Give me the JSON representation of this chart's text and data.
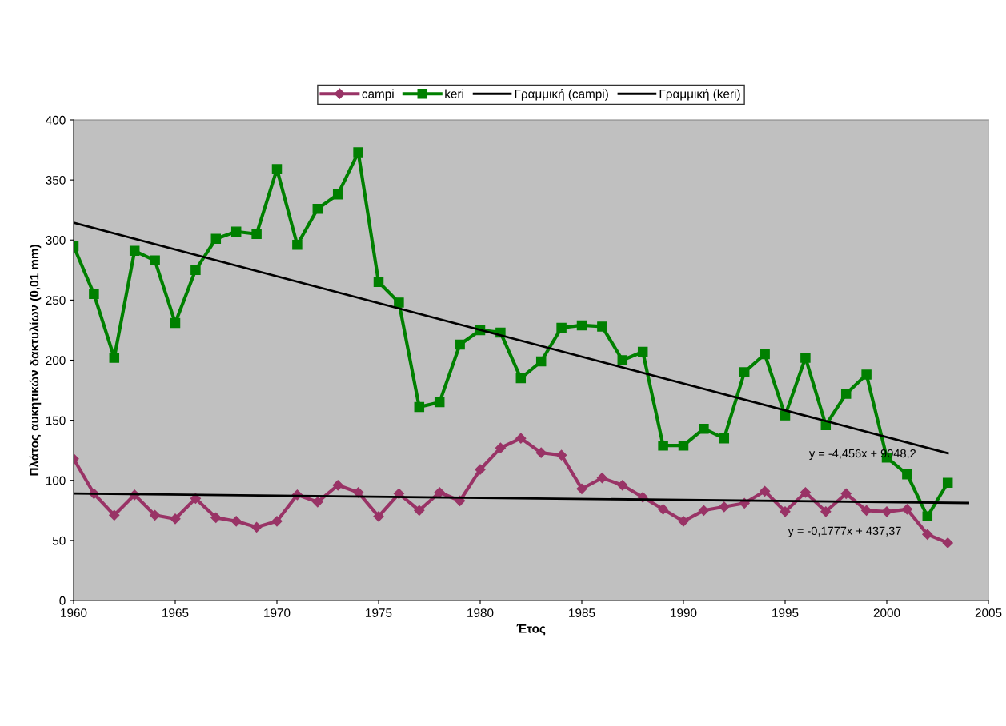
{
  "chart_data": {
    "type": "line",
    "xlabel": "Έτος",
    "ylabel": "Πλάτος αυκητικών δακτυλίων (0,01 mm)",
    "x": [
      1960,
      1961,
      1962,
      1963,
      1964,
      1965,
      1966,
      1967,
      1968,
      1969,
      1970,
      1971,
      1972,
      1973,
      1974,
      1975,
      1976,
      1977,
      1978,
      1979,
      1980,
      1981,
      1982,
      1983,
      1984,
      1985,
      1986,
      1987,
      1988,
      1989,
      1990,
      1991,
      1992,
      1993,
      1994,
      1995,
      1996,
      1997,
      1998,
      1999,
      2000,
      2001,
      2002,
      2003
    ],
    "series": [
      {
        "name": "campi",
        "color": "#993366",
        "marker": "diamond",
        "values": [
          118,
          89,
          71,
          88,
          71,
          68,
          85,
          69,
          66,
          61,
          66,
          88,
          82,
          96,
          90,
          70,
          89,
          75,
          90,
          83,
          109,
          127,
          135,
          123,
          121,
          93,
          102,
          96,
          86,
          76,
          66,
          75,
          78,
          81,
          91,
          74,
          90,
          74,
          89,
          75,
          74,
          76,
          55,
          48
        ]
      },
      {
        "name": "keri",
        "color": "#008000",
        "marker": "square",
        "values": [
          295,
          255,
          202,
          291,
          283,
          231,
          275,
          301,
          307,
          305,
          359,
          296,
          326,
          338,
          373,
          265,
          248,
          161,
          165,
          213,
          225,
          223,
          185,
          199,
          227,
          229,
          228,
          200,
          207,
          129,
          129,
          143,
          135,
          190,
          205,
          154,
          202,
          146,
          172,
          188,
          119,
          105,
          70,
          98
        ]
      },
      {
        "name": "Γραμμική (campi)",
        "color": "#000000",
        "marker": "none",
        "x": [
          1960,
          2004
        ],
        "values": [
          89.1,
          81.2
        ]
      },
      {
        "name": "Γραμμική (keri)",
        "color": "#000000",
        "marker": "none",
        "x": [
          1960,
          2003
        ],
        "values": [
          314.4,
          122.6
        ]
      }
    ],
    "annotations": [
      "y = -4,456x + 9048,2",
      "y = -0,1777x + 437,37"
    ],
    "xlim": [
      1960,
      2005
    ],
    "xticks": [
      1960,
      1965,
      1970,
      1975,
      1980,
      1985,
      1990,
      1995,
      2000,
      2005
    ],
    "ylim": [
      0,
      400
    ],
    "yticks": [
      0,
      50,
      100,
      150,
      200,
      250,
      300,
      350,
      400
    ],
    "grid": false,
    "legend": "top",
    "line_style": "solid"
  }
}
